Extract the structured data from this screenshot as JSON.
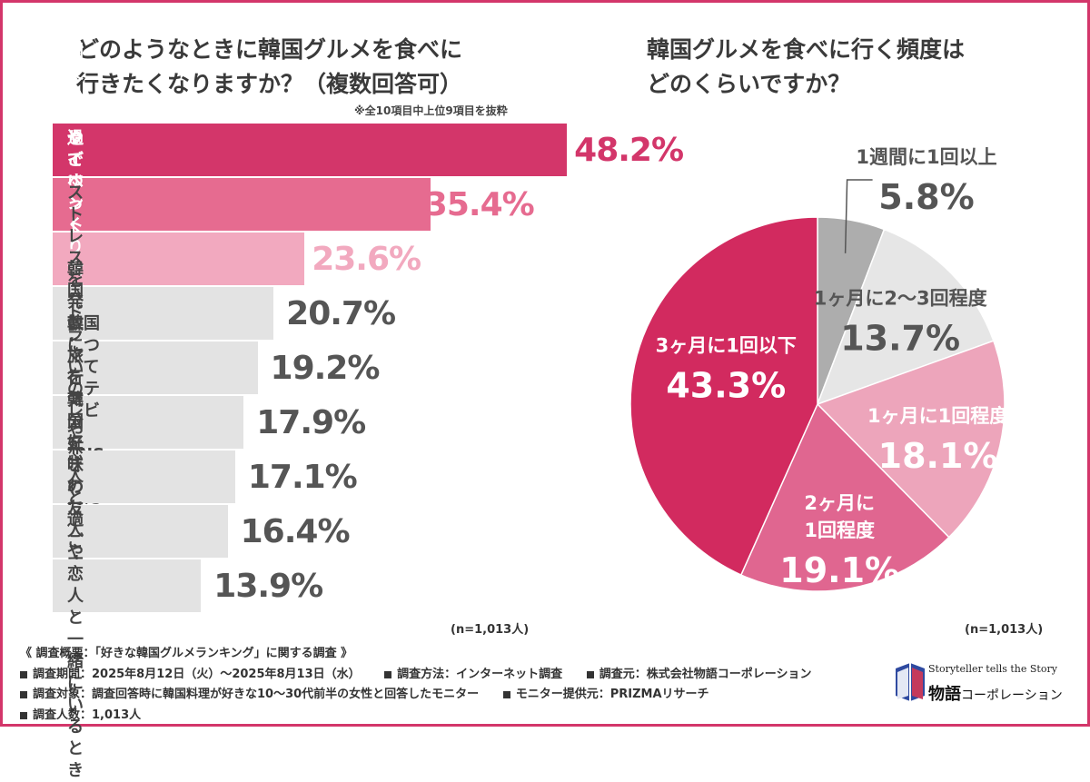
{
  "left_title": [
    "どのようなときに韓国グルメを食べに",
    "行きたくなりますか？（複数回答可）"
  ],
  "left_note": "※全10項目中上位9項目を抜粋",
  "right_title": [
    "韓国グルメを食べに行く頻度は",
    "どのくらいですか？"
  ],
  "n_left": "(n=1,013人)",
  "n_right": "(n=1,013人)",
  "colors": {
    "accent": "#d3366a",
    "bar_top1": "#d3366a",
    "bar_top2": "#e66b90",
    "bar_top3": "#f2a9bf",
    "bar_gray": "#e3e3e3",
    "value_gray": "#555555"
  },
  "chart_data": [
    {
      "type": "bar",
      "orientation": "horizontal",
      "title": "どのようなときに韓国グルメを食べに行きたくなりますか？（複数回答可）",
      "categories": [
        "友人と過ごすとき",
        "韓国フェアやイベントを見かけたとき",
        "ひとりでゆっくり食事をしたいとき",
        "ストレスを発散したいとき",
        "韓国ドラマを見たとき",
        "韓国についてのテレビやSNSを\n見たとき",
        "旅行気分を味わいたいとき",
        "恋人と過ごすとき",
        "韓国好きの友人や恋人と\n一緒にいるとき"
      ],
      "values": [
        48.2,
        35.4,
        23.6,
        20.7,
        19.2,
        17.9,
        17.1,
        16.4,
        13.9
      ],
      "value_labels": [
        "48.2%",
        "35.4%",
        "23.6%",
        "20.7%",
        "19.2%",
        "17.9%",
        "17.1%",
        "16.4%",
        "13.9%"
      ],
      "unit": "%",
      "xlim": [
        0,
        63
      ]
    },
    {
      "type": "pie",
      "title": "韓国グルメを食べに行く頻度はどのくらいですか？",
      "slices": [
        {
          "label": "1週間に1回以上",
          "value": 5.8,
          "value_label": "5.8%",
          "color": "#adadad"
        },
        {
          "label": "1ヶ月に2〜3回程度",
          "value": 13.7,
          "value_label": "13.7%",
          "color": "#e6e6e6"
        },
        {
          "label": "1ヶ月に1回程度",
          "value": 18.1,
          "value_label": "18.1%",
          "color": "#eda5bb"
        },
        {
          "label": "2ヶ月に\n1回程度",
          "value": 19.1,
          "value_label": "19.1%",
          "color": "#e06690"
        },
        {
          "label": "3ヶ月に1回以下",
          "value": 43.3,
          "value_label": "43.3%",
          "color": "#d22a5f"
        }
      ]
    }
  ],
  "footer": {
    "summary": "《 調査概要：「好きな韓国グルメランキング」に関する調査 》",
    "period": "調査期間：2025年8月12日（火）〜2025年8月13日（水）",
    "method": "調査方法：インターネット調査",
    "source": "調査元：株式会社物語コーポレーション",
    "target": "調査対象：調査回答時に韓国料理が好きな10〜30代前半の女性と回答したモニター",
    "provider": "モニター提供元：PRIZMAリサーチ",
    "count": "調査人数：1,013人"
  },
  "logo": {
    "tagline": "Storyteller tells the Story",
    "name_main": "物語",
    "name_sub": "コーポレーション"
  }
}
